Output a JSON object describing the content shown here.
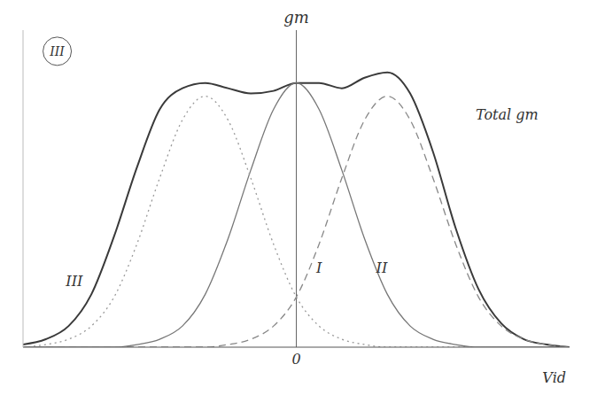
{
  "chart_data": {
    "type": "line",
    "x_label": "Vid",
    "y_label": "gm",
    "xlim": [
      -2.4,
      2.4
    ],
    "ylim": [
      0,
      1.2
    ],
    "xticks": [
      0
    ],
    "yticks": [],
    "tick_labels": "x",
    "grid": false,
    "x": [
      -2.4,
      -2.2,
      -2.0,
      -1.8,
      -1.6,
      -1.4,
      -1.2,
      -1.0,
      -0.8,
      -0.6,
      -0.4,
      -0.2,
      0,
      0.2,
      0.4,
      0.6,
      0.8,
      1.0,
      1.2,
      1.4,
      1.6,
      1.8,
      2.0,
      2.2,
      2.4
    ],
    "series": [
      {
        "name": "Total gm",
        "color": "#3a3a3a",
        "line_style": "solid",
        "values": [
          0.01,
          0.03,
          0.08,
          0.2,
          0.42,
          0.68,
          0.9,
          0.98,
          1.0,
          0.98,
          0.96,
          0.97,
          1.0,
          1.0,
          0.98,
          1.02,
          1.04,
          0.96,
          0.74,
          0.45,
          0.22,
          0.09,
          0.03,
          0.01,
          0
        ]
      },
      {
        "name": "I",
        "color": "#777777",
        "line_style": "solid",
        "values": [
          0,
          0,
          0,
          0,
          0,
          0.01,
          0.03,
          0.08,
          0.2,
          0.41,
          0.67,
          0.9,
          1.0,
          0.9,
          0.67,
          0.41,
          0.2,
          0.08,
          0.03,
          0.01,
          0,
          0,
          0,
          0,
          0
        ]
      },
      {
        "name": "II",
        "color": "#888888",
        "line_style": "dashed",
        "values": [
          0,
          0,
          0,
          0,
          0,
          0,
          0,
          0,
          0,
          0.01,
          0.03,
          0.08,
          0.19,
          0.39,
          0.64,
          0.86,
          0.95,
          0.86,
          0.64,
          0.39,
          0.19,
          0.08,
          0.03,
          0.01,
          0
        ]
      },
      {
        "name": "III",
        "color": "#999999",
        "line_style": "dotted",
        "values": [
          0,
          0.01,
          0.03,
          0.08,
          0.19,
          0.39,
          0.64,
          0.86,
          0.95,
          0.86,
          0.64,
          0.39,
          0.19,
          0.08,
          0.03,
          0.01,
          0,
          0,
          0,
          0,
          0,
          0,
          0,
          0,
          0
        ]
      }
    ],
    "annotations": [
      {
        "text": "I",
        "x": 0.2,
        "y": 0.3
      },
      {
        "text": "II",
        "x": 0.75,
        "y": 0.3
      },
      {
        "text": "III",
        "x": -1.95,
        "y": 0.25
      },
      {
        "text": "Total gm",
        "x": 1.85,
        "y": 0.88
      }
    ],
    "circled": [
      {
        "text": "III",
        "x": -2.1,
        "y": 1.12
      }
    ]
  }
}
